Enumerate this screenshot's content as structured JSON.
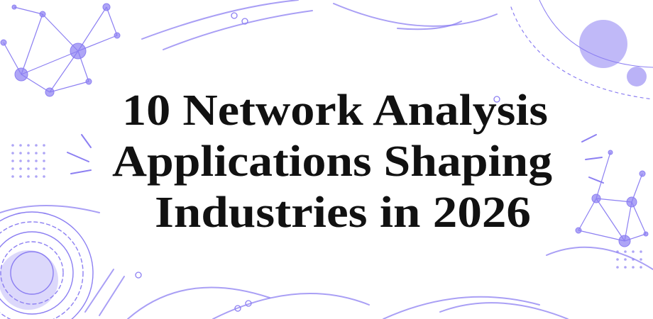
{
  "title_lines": [
    "10 Network Analysis",
    "Applications Shaping",
    "Industries in 2026"
  ]
}
